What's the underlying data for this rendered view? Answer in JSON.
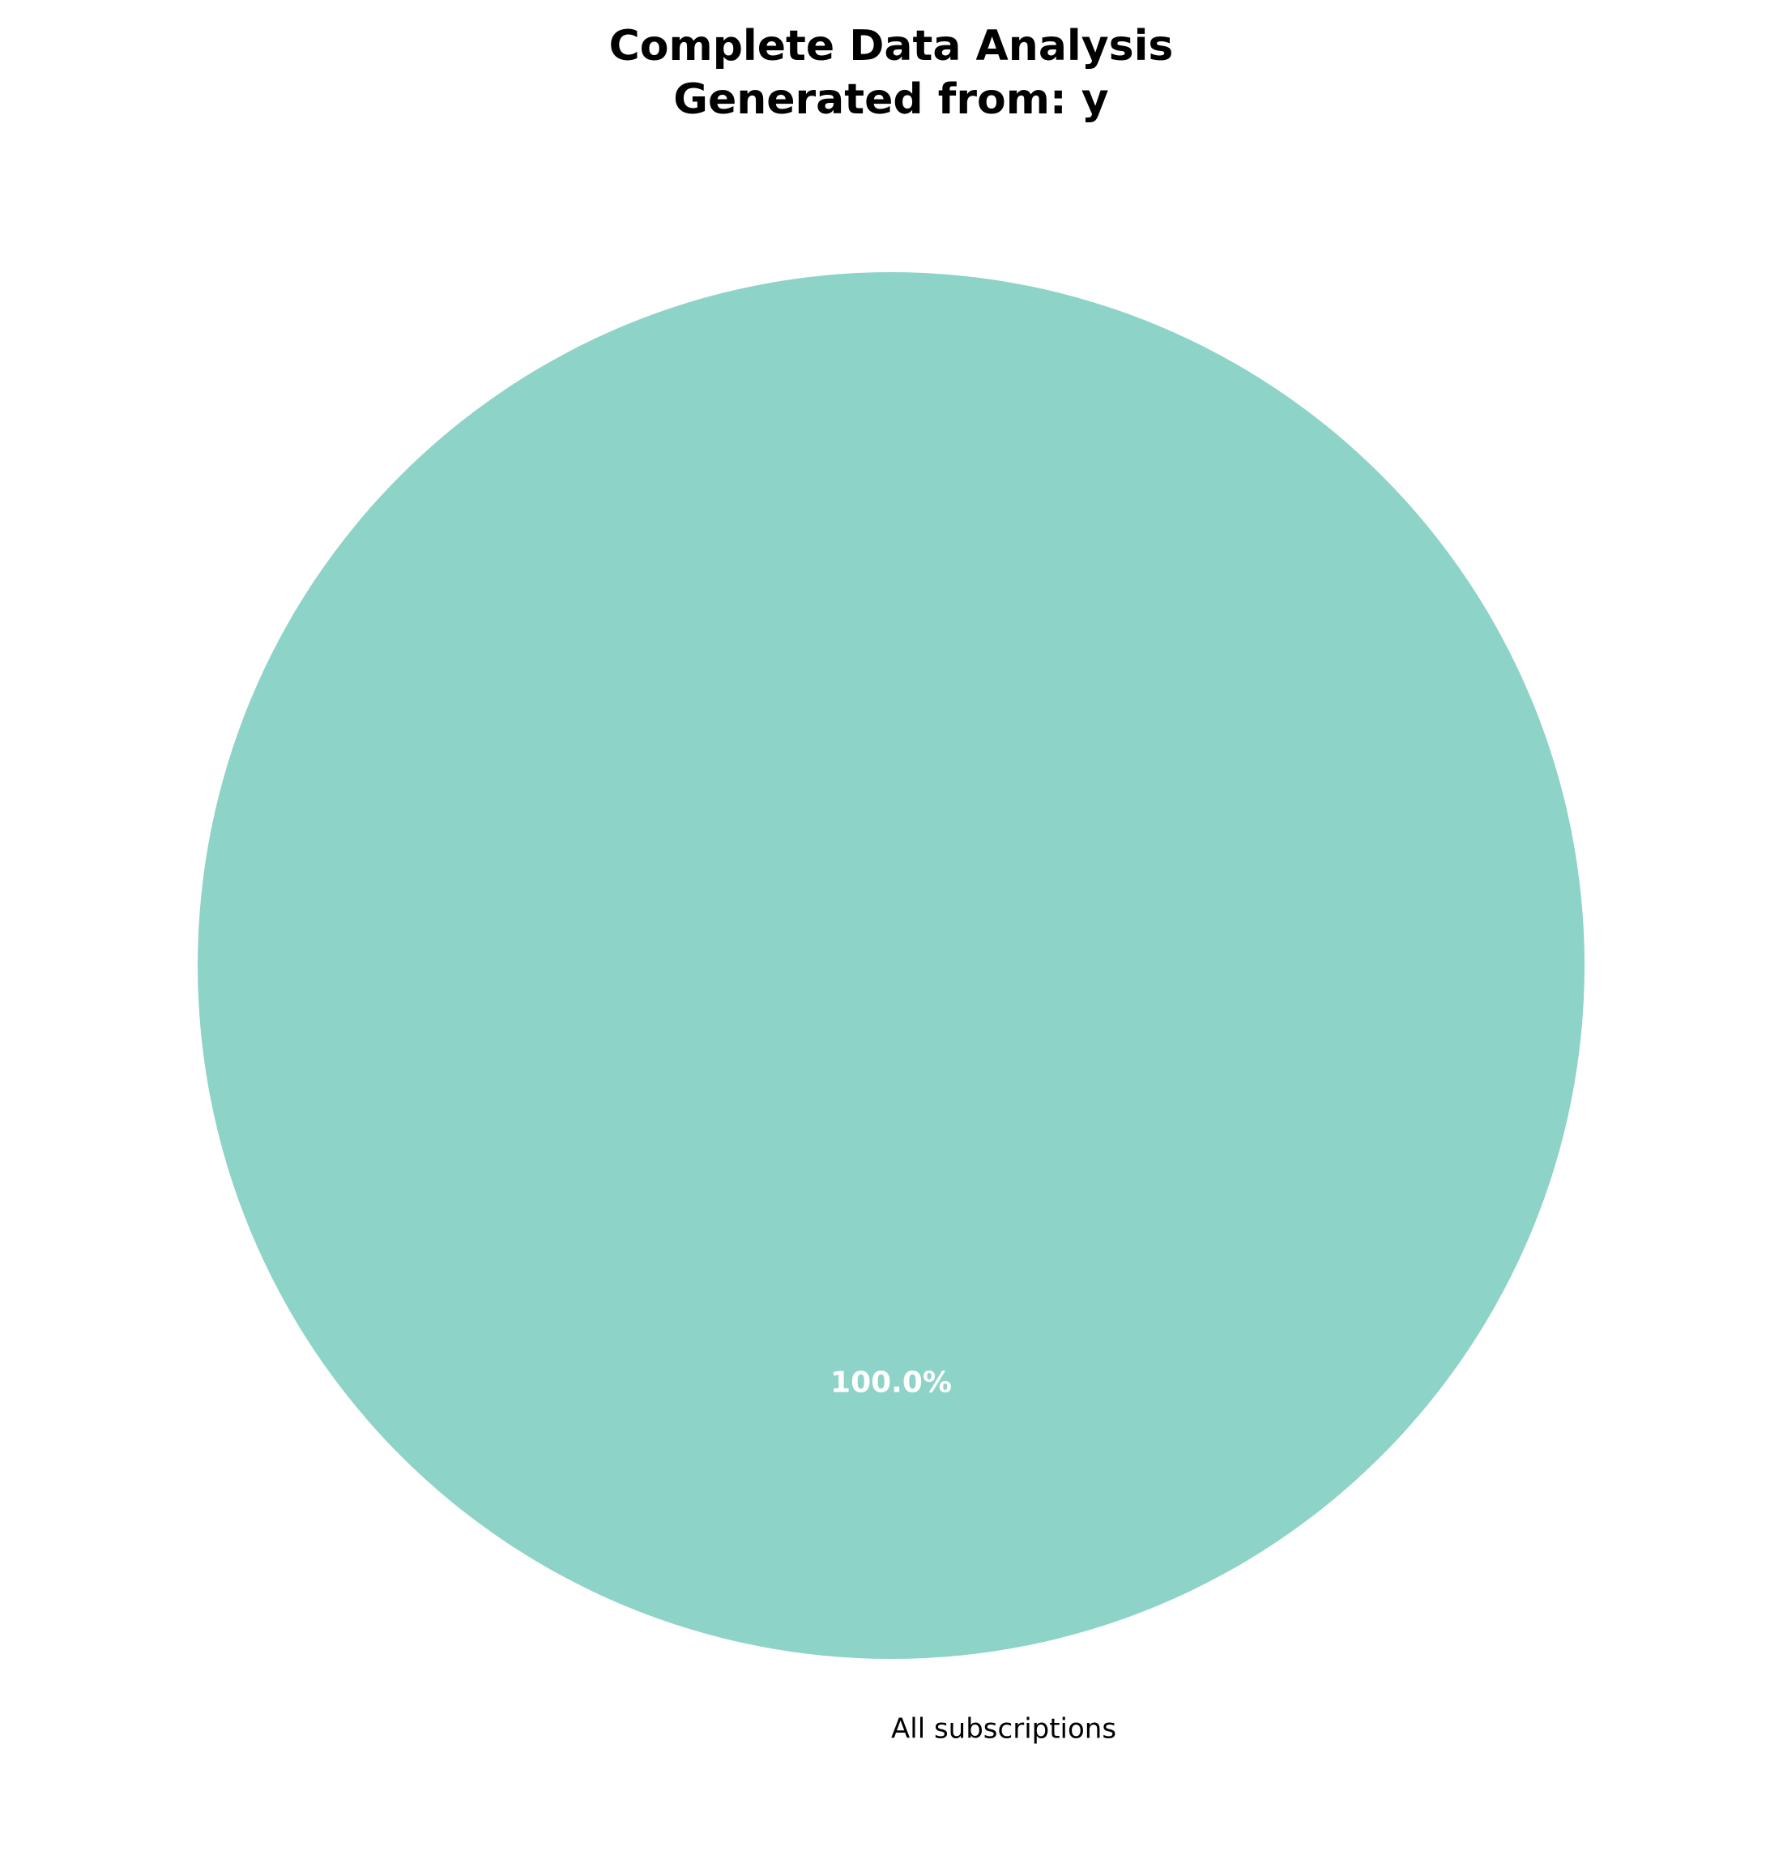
{
  "chart_data": {
    "type": "pie",
    "title": [
      "Complete Data Analysis",
      "Generated from: y"
    ],
    "categories": [
      "All subscriptions"
    ],
    "values": [
      100.0
    ],
    "percent_labels": [
      "100.0%"
    ],
    "colors": [
      "#8dd3c7"
    ],
    "legend": "none"
  }
}
